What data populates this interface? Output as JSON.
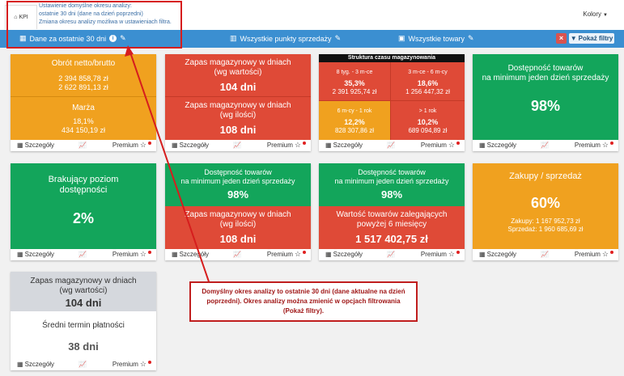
{
  "header": {
    "kpi_tab": "KPI",
    "tooltip": [
      "Ustawienie domyślne okresu analizy:",
      "ostatnie 30 dni (dane na dzień poprzedni)",
      "Zmiana okresu analizy możliwa w ustawieniach filtra."
    ],
    "kolory": "Kolory"
  },
  "filters": {
    "period": "Dane za ostatnie 30 dni",
    "points": "Wszystkie punkty sprzedaży",
    "products": "Wszystkie towary",
    "clear_label": "×",
    "show_filters": "Pokaż filtry"
  },
  "footer": {
    "details": "Szczegóły",
    "premium": "Premium"
  },
  "tiles": {
    "revenue": {
      "title": "Obrót netto/brutto",
      "net": "2 394 858,78 zł",
      "gross": "2 622 891,13 zł",
      "margin_title": "Marża",
      "margin_pct": "18,1%",
      "margin_value": "434 150,19 zł"
    },
    "stock_value": {
      "title": "Zapas magazynowy w dniach",
      "subtitle": "(wg wartości)",
      "value": "104 dni",
      "qty_title": "Zapas magazynowy w dniach",
      "qty_subtitle": "(wg ilości)",
      "qty_value": "108 dni"
    },
    "structure": {
      "title": "Struktura czasu magazynowania",
      "q1": {
        "label": "8 tyg. - 3 m-ce",
        "pct": "35,3%",
        "value": "2 391 925,74 zł"
      },
      "q2": {
        "label": "3 m-ce - 6 m-cy",
        "pct": "18,6%",
        "value": "1 256 447,32 zł"
      },
      "q3": {
        "label": "6 m-cy - 1 rok",
        "pct": "12,2%",
        "value": "828 307,86 zł"
      },
      "q4": {
        "label": "> 1 rok",
        "pct": "10,2%",
        "value": "689 094,89 zł"
      }
    },
    "availability": {
      "title1": "Dostępność towarów",
      "title2": "na minimum jeden dzień sprzedaży",
      "value": "98%"
    },
    "missing": {
      "title1": "Brakujący poziom",
      "title2": "dostępności",
      "value": "2%"
    },
    "availability2": {
      "title1": "Dostępność towarów",
      "title2": "na minimum jeden dzień sprzedaży",
      "value": "98%",
      "stock_title": "Zapas magazynowy w dniach",
      "stock_subtitle": "(wg ilości)",
      "stock_value": "108 dni"
    },
    "availability3": {
      "title1": "Dostępność towarów",
      "title2": "na minimum jeden dzień sprzedaży",
      "value": "98%",
      "stale_title1": "Wartość towarów zalegających",
      "stale_title2": "powyżej 6 miesięcy",
      "stale_value": "1 517 402,75 zł"
    },
    "purchases": {
      "title": "Zakupy / sprzedaż",
      "value": "60%",
      "purchases_line": "Zakupy: 1 167 952,73 zł",
      "sales_line": "Sprzedaż: 1 960 685,69 zł"
    },
    "stock3": {
      "title": "Zapas magazynowy w dniach",
      "subtitle": "(wg wartości)",
      "value": "104 dni",
      "term_title": "Średni termin płatności",
      "term_value": "38 dni"
    }
  },
  "callout": {
    "text": "Domyślny okres analizy to ostatnie 30 dni (dane aktualne na dzień poprzedni). Okres analizy można zmienić w opcjach filtrowania (Pokaż filtry)."
  },
  "colors": {
    "orange": "#f0a11f",
    "red": "#df4a37",
    "green": "#13a55b",
    "blue": "#3b8fd1",
    "annotation": "#d61d1d"
  }
}
